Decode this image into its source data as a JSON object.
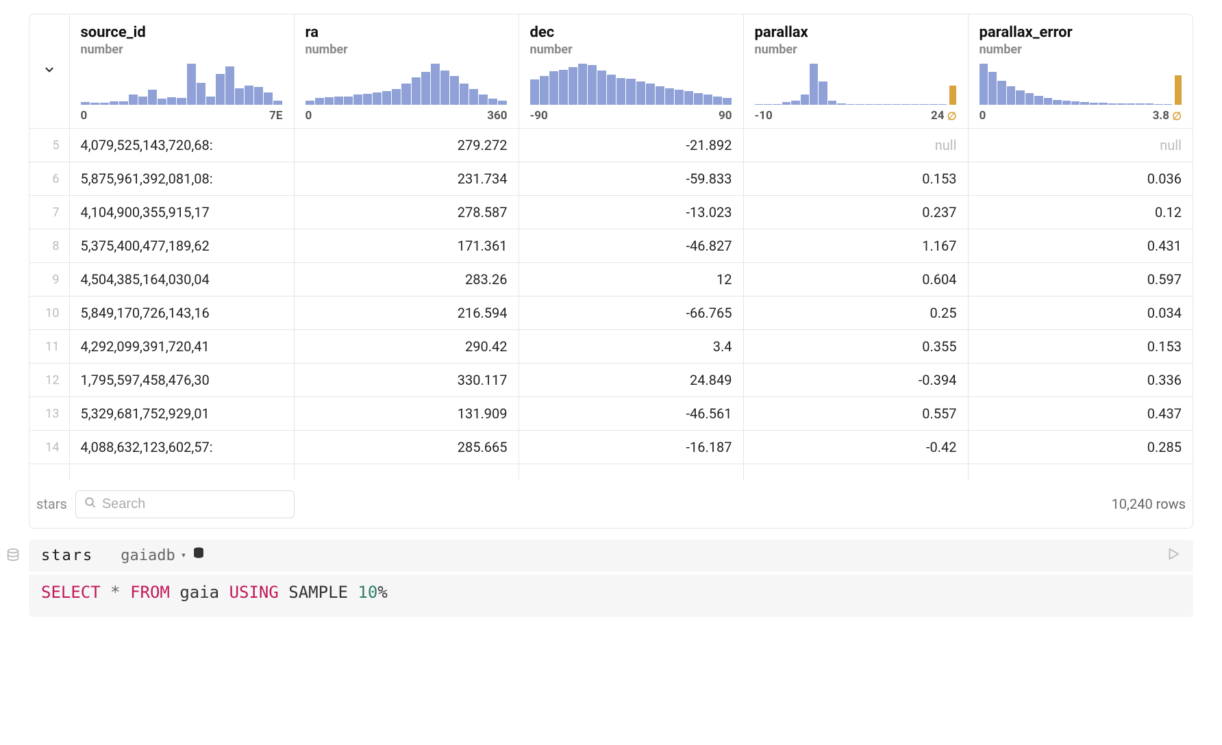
{
  "table": {
    "name_label": "stars",
    "row_count_label": "10,240 rows",
    "search_placeholder": "Search",
    "columns": [
      {
        "name": "source_id",
        "type": "number",
        "align": "left",
        "hist": {
          "bars": [
            6,
            5,
            5,
            8,
            8,
            24,
            20,
            36,
            14,
            18,
            16,
            98,
            52,
            20,
            74,
            92,
            40,
            46,
            42,
            30,
            10
          ],
          "bar_color": "#8fa1d6",
          "has_null": false,
          "min_label": "0",
          "max_label": "7E"
        }
      },
      {
        "name": "ra",
        "type": "number",
        "align": "num",
        "hist": {
          "bars": [
            10,
            16,
            18,
            20,
            20,
            24,
            26,
            30,
            32,
            38,
            50,
            66,
            78,
            98,
            82,
            68,
            50,
            38,
            24,
            14,
            10
          ],
          "bar_color": "#8fa1d6",
          "has_null": false,
          "min_label": "0",
          "max_label": "360"
        }
      },
      {
        "name": "dec",
        "type": "number",
        "align": "num",
        "hist": {
          "bars": [
            60,
            68,
            80,
            84,
            90,
            98,
            94,
            82,
            72,
            64,
            62,
            56,
            50,
            44,
            40,
            36,
            32,
            28,
            24,
            20,
            16
          ],
          "bar_color": "#8fa1d6",
          "has_null": false,
          "min_label": "-90",
          "max_label": "90"
        }
      },
      {
        "name": "parallax",
        "type": "number",
        "align": "num",
        "hist": {
          "bars": [
            2,
            2,
            2,
            6,
            10,
            24,
            98,
            56,
            10,
            4,
            2,
            2,
            2,
            2,
            2,
            2,
            2,
            2,
            2,
            2,
            2
          ],
          "bar_color": "#8fa1d6",
          "has_null": true,
          "null_height": 46,
          "null_color": "#d9a23d",
          "min_label": "-10",
          "max_label": "24"
        }
      },
      {
        "name": "parallax_error",
        "type": "number",
        "align": "num",
        "hist": {
          "bars": [
            98,
            78,
            58,
            44,
            34,
            28,
            22,
            16,
            12,
            10,
            8,
            6,
            5,
            5,
            4,
            4,
            3,
            3,
            3,
            2,
            2
          ],
          "bar_color": "#8fa1d6",
          "has_null": true,
          "null_height": 70,
          "null_color": "#d9a23d",
          "min_label": "0",
          "max_label": "3.8"
        }
      }
    ],
    "rows": [
      {
        "n": 5,
        "cells": [
          "4,079,525,143,720,68:",
          "279.272",
          "-21.892",
          "null",
          "null"
        ]
      },
      {
        "n": 6,
        "cells": [
          "5,875,961,392,081,08:",
          "231.734",
          "-59.833",
          "0.153",
          "0.036"
        ]
      },
      {
        "n": 7,
        "cells": [
          "4,104,900,355,915,17",
          "278.587",
          "-13.023",
          "0.237",
          "0.12"
        ]
      },
      {
        "n": 8,
        "cells": [
          "5,375,400,477,189,62",
          "171.361",
          "-46.827",
          "1.167",
          "0.431"
        ]
      },
      {
        "n": 9,
        "cells": [
          "4,504,385,164,030,04",
          "283.26",
          "12",
          "0.604",
          "0.597"
        ]
      },
      {
        "n": 10,
        "cells": [
          "5,849,170,726,143,16",
          "216.594",
          "-66.765",
          "0.25",
          "0.034"
        ]
      },
      {
        "n": 11,
        "cells": [
          "4,292,099,391,720,41",
          "290.42",
          "3.4",
          "0.355",
          "0.153"
        ]
      },
      {
        "n": 12,
        "cells": [
          "1,795,597,458,476,30",
          "330.117",
          "24.849",
          "-0.394",
          "0.336"
        ]
      },
      {
        "n": 13,
        "cells": [
          "5,329,681,752,929,01",
          "131.909",
          "-46.561",
          "0.557",
          "0.437"
        ]
      },
      {
        "n": 14,
        "cells": [
          "4,088,632,123,602,57:",
          "285.665",
          "-16.187",
          "-0.42",
          "0.285"
        ]
      }
    ]
  },
  "query": {
    "cell_name": "stars",
    "db_name": "gaiadb",
    "sql_tokens": [
      {
        "t": "SELECT",
        "c": "kw"
      },
      {
        "t": " ",
        "c": ""
      },
      {
        "t": "*",
        "c": "star"
      },
      {
        "t": " ",
        "c": ""
      },
      {
        "t": "FROM",
        "c": "kw"
      },
      {
        "t": " ",
        "c": ""
      },
      {
        "t": "gaia",
        "c": "ident"
      },
      {
        "t": " ",
        "c": ""
      },
      {
        "t": "USING",
        "c": "kw"
      },
      {
        "t": " ",
        "c": ""
      },
      {
        "t": "SAMPLE",
        "c": "ident"
      },
      {
        "t": " ",
        "c": ""
      },
      {
        "t": "10",
        "c": "numlit"
      },
      {
        "t": "%",
        "c": "ident"
      }
    ]
  },
  "colors": {
    "hist_bar": "#8fa1d6",
    "hist_null": "#d9a23d",
    "border": "#e5e5e5",
    "muted": "#888",
    "keyword": "#c2185b",
    "number_literal": "#2e7d6b"
  }
}
